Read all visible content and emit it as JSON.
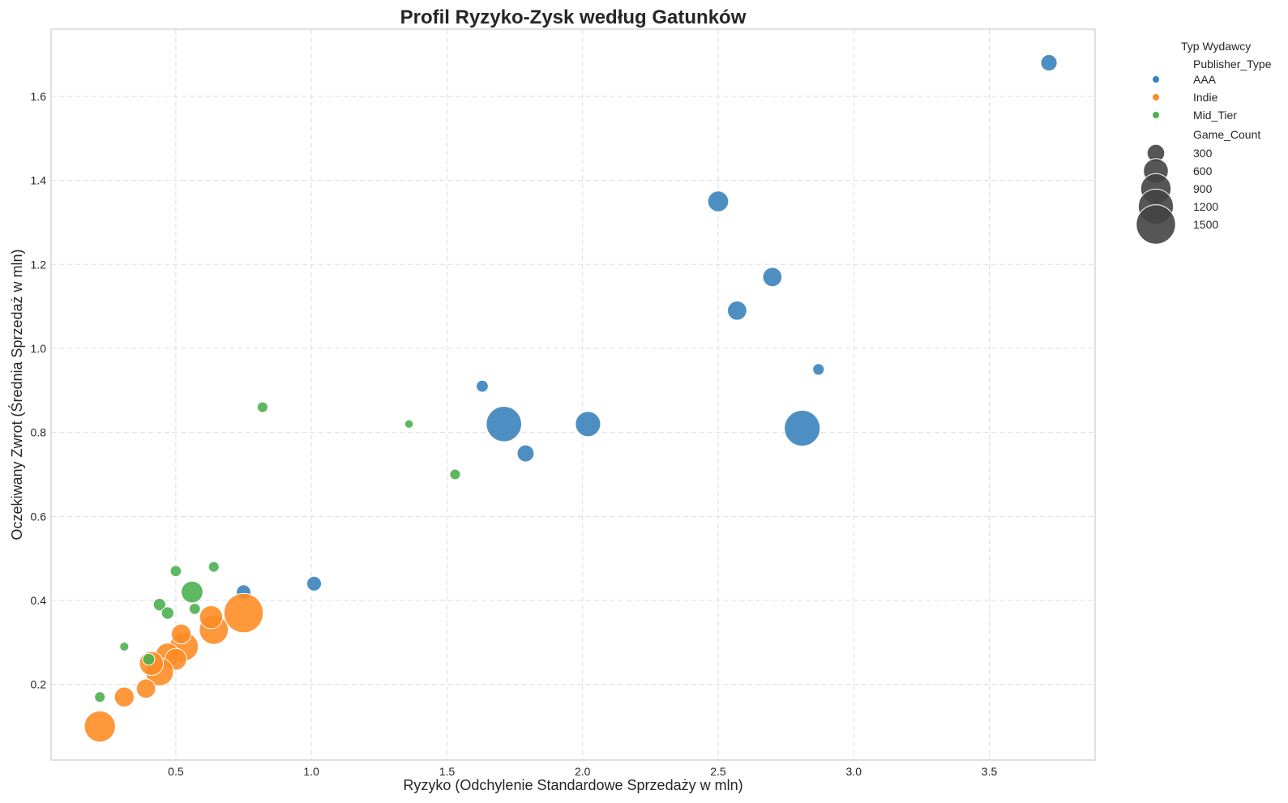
{
  "chart_data": {
    "type": "scatter",
    "title": "Profil Ryzyko-Zysk według Gatunków",
    "xlabel": "Ryzyko (Odchylenie Standardowe Sprzedaży w mln)",
    "ylabel": "Oczekiwany Zwrot (Średnia Sprzedaż w mln)",
    "xlim": [
      0.04,
      3.89
    ],
    "ylim": [
      0.02,
      1.76
    ],
    "x_ticks": [
      "0.5",
      "1.0",
      "1.5",
      "2.0",
      "2.5",
      "3.0",
      "3.5"
    ],
    "y_ticks": [
      "0.2",
      "0.4",
      "0.6",
      "0.8",
      "1.0",
      "1.2",
      "1.4",
      "1.6"
    ],
    "grid": true,
    "legend": {
      "title": "Typ Wydawcy",
      "placement": "outside-right",
      "hue_title": "Publisher_Type",
      "size_title": "Game_Count",
      "size_entries": [
        {
          "label": "300",
          "value": 300
        },
        {
          "label": "600",
          "value": 600
        },
        {
          "label": "900",
          "value": 900
        },
        {
          "label": "1200",
          "value": 1200
        },
        {
          "label": "1500",
          "value": 1500
        }
      ]
    },
    "size_range": [
      60,
      1600
    ],
    "series": [
      {
        "name": "AAA",
        "color": "#3b83bd",
        "points": [
          {
            "x": 3.72,
            "y": 1.68,
            "size": 260
          },
          {
            "x": 2.5,
            "y": 1.35,
            "size": 420
          },
          {
            "x": 2.7,
            "y": 1.17,
            "size": 360
          },
          {
            "x": 2.57,
            "y": 1.09,
            "size": 360
          },
          {
            "x": 2.87,
            "y": 0.95,
            "size": 130
          },
          {
            "x": 2.81,
            "y": 0.81,
            "size": 1250
          },
          {
            "x": 2.02,
            "y": 0.82,
            "size": 620
          },
          {
            "x": 1.71,
            "y": 0.82,
            "size": 1220
          },
          {
            "x": 1.79,
            "y": 0.75,
            "size": 280
          },
          {
            "x": 1.63,
            "y": 0.91,
            "size": 140
          },
          {
            "x": 1.01,
            "y": 0.44,
            "size": 210
          },
          {
            "x": 0.75,
            "y": 0.42,
            "size": 200
          }
        ]
      },
      {
        "name": "Indie",
        "color": "#ff8c26",
        "points": [
          {
            "x": 0.75,
            "y": 0.37,
            "size": 1500
          },
          {
            "x": 0.64,
            "y": 0.33,
            "size": 820
          },
          {
            "x": 0.63,
            "y": 0.36,
            "size": 520
          },
          {
            "x": 0.53,
            "y": 0.29,
            "size": 800
          },
          {
            "x": 0.52,
            "y": 0.32,
            "size": 380
          },
          {
            "x": 0.47,
            "y": 0.27,
            "size": 560
          },
          {
            "x": 0.5,
            "y": 0.26,
            "size": 460
          },
          {
            "x": 0.44,
            "y": 0.23,
            "size": 760
          },
          {
            "x": 0.41,
            "y": 0.25,
            "size": 560
          },
          {
            "x": 0.39,
            "y": 0.19,
            "size": 360
          },
          {
            "x": 0.31,
            "y": 0.17,
            "size": 380
          },
          {
            "x": 0.22,
            "y": 0.1,
            "size": 940
          }
        ]
      },
      {
        "name": "Mid_Tier",
        "color": "#4caf50",
        "points": [
          {
            "x": 0.82,
            "y": 0.86,
            "size": 110
          },
          {
            "x": 1.36,
            "y": 0.82,
            "size": 70
          },
          {
            "x": 1.53,
            "y": 0.7,
            "size": 110
          },
          {
            "x": 0.64,
            "y": 0.48,
            "size": 110
          },
          {
            "x": 0.5,
            "y": 0.47,
            "size": 120
          },
          {
            "x": 0.56,
            "y": 0.42,
            "size": 460
          },
          {
            "x": 0.44,
            "y": 0.39,
            "size": 150
          },
          {
            "x": 0.47,
            "y": 0.37,
            "size": 150
          },
          {
            "x": 0.57,
            "y": 0.38,
            "size": 120
          },
          {
            "x": 0.31,
            "y": 0.29,
            "size": 80
          },
          {
            "x": 0.4,
            "y": 0.26,
            "size": 140
          },
          {
            "x": 0.22,
            "y": 0.17,
            "size": 110
          }
        ]
      }
    ]
  }
}
